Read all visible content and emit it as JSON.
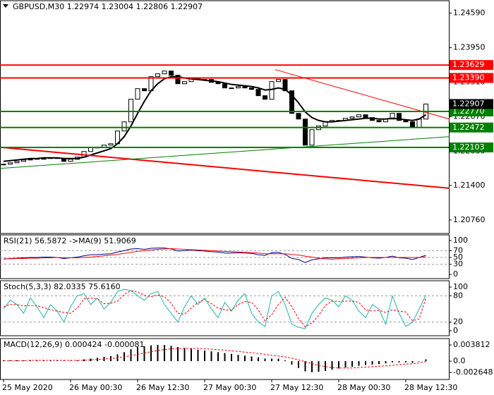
{
  "chart_data": [
    {
      "type": "candlestick",
      "title": "GBPUSD,M30  1.22974 1.23004 1.22806 1.22907",
      "categories": [
        "25 May 2020",
        null,
        null,
        null,
        null,
        null,
        null,
        null,
        null,
        null,
        "26 May 00:30",
        null,
        null,
        null,
        null,
        null,
        null,
        null,
        null,
        null,
        "26 May 12:30",
        null,
        null,
        null,
        null,
        null,
        null,
        null,
        null,
        null,
        "27 May 00:30",
        null,
        null,
        null,
        null,
        null,
        null,
        null,
        null,
        null,
        "27 May 12:30",
        null,
        null,
        null,
        null,
        null,
        null,
        null,
        null,
        null,
        "28 May 00:30",
        null,
        null,
        null,
        null,
        null,
        null,
        null,
        null,
        null,
        "28 May 12:30",
        null,
        null,
        null
      ],
      "closes": [
        1.21793,
        1.21819,
        1.21845,
        1.21871,
        1.21884,
        1.21898,
        1.21898,
        1.21911,
        1.21898,
        1.21845,
        1.21884,
        1.21924,
        1.22028,
        1.22107,
        1.22107,
        1.22146,
        1.22172,
        1.22407,
        1.22577,
        1.22995,
        1.23192,
        1.23152,
        1.23414,
        1.23466,
        1.23518,
        1.2344,
        1.23283,
        1.23322,
        1.23388,
        1.23361,
        1.23361,
        1.23309,
        1.23283,
        1.23205,
        1.23205,
        1.23231,
        1.23205,
        1.23178,
        1.23061,
        1.22995,
        1.23322,
        1.23361,
        1.23152,
        1.22734,
        1.22629,
        1.22146,
        1.22433,
        1.22499,
        1.22577,
        1.22603,
        1.22603,
        1.22643,
        1.22669,
        1.22708,
        1.22656,
        1.22603,
        1.22577,
        1.22629,
        1.22734,
        1.22603,
        1.22577,
        1.22473,
        1.22629,
        1.22907
      ],
      "ma_values": [
        1.21845,
        1.21858,
        1.21871,
        1.21884,
        1.21898,
        1.21898,
        1.21911,
        1.21911,
        1.21911,
        1.21898,
        1.21898,
        1.21898,
        1.21924,
        1.21963,
        1.22002,
        1.22041,
        1.22081,
        1.22172,
        1.22303,
        1.22499,
        1.22734,
        1.22956,
        1.23152,
        1.23283,
        1.23374,
        1.23414,
        1.23414,
        1.23388,
        1.23374,
        1.23361,
        1.23348,
        1.23335,
        1.23322,
        1.23296,
        1.2327,
        1.23257,
        1.23244,
        1.23231,
        1.23205,
        1.23166,
        1.23178,
        1.23205,
        1.23178,
        1.23074,
        1.2293,
        1.2276,
        1.22656,
        1.22603,
        1.22577,
        1.22577,
        1.2259,
        1.22603,
        1.22616,
        1.22629,
        1.22643,
        1.22643,
        1.22629,
        1.22629,
        1.22643,
        1.22629,
        1.22616,
        1.22603,
        1.22629,
        1.22708
      ],
      "ma_color": "#000000",
      "ylim": [
        1.2051,
        1.2482
      ],
      "yticks": [
        {
          "value": 1.2459,
          "label": "1.24590"
        },
        {
          "value": 1.2395,
          "label": "1.23950"
        },
        {
          "value": 1.2331,
          "label": "1.23310"
        },
        {
          "value": 1.2267,
          "label": "1.22670"
        },
        {
          "value": 1.2203,
          "label": "1.22030"
        },
        {
          "value": 1.214,
          "label": "1.21400"
        },
        {
          "value": 1.2076,
          "label": "1.20760"
        }
      ],
      "levels": [
        {
          "value": 1.23629,
          "label": "1.23629",
          "color": "#ff0000"
        },
        {
          "value": 1.2339,
          "label": "1.23390",
          "color": "#ff0000"
        },
        {
          "value": 1.2277,
          "label": "1.22770",
          "color": "#008000"
        },
        {
          "value": 1.22472,
          "label": "1.22472",
          "color": "#008000"
        },
        {
          "value": 1.22103,
          "label": "1.22103",
          "color": "#008000"
        }
      ],
      "trendlines": [
        {
          "color": "#ff0000",
          "width": 2,
          "x": [
            -0.5,
            66.5
          ],
          "y": [
            1.22107,
            1.21348
          ]
        },
        {
          "color": "#ff0000",
          "width": 1,
          "x": [
            40.5,
            66.5
          ],
          "y": [
            1.23544,
            1.22629
          ]
        },
        {
          "color": "#008000",
          "width": 1,
          "x": [
            -0.5,
            66.5
          ],
          "y": [
            1.21715,
            1.22303
          ]
        }
      ]
    },
    {
      "type": "line",
      "title": "RSI(21) 56.5872 ->MA(9) 51.9069",
      "ylim": [
        -12.5,
        116.7
      ],
      "yticks": [
        100,
        70,
        50,
        30,
        0
      ],
      "levels": [
        70,
        50,
        30
      ],
      "series": [
        {
          "color": "#000080",
          "dash": false,
          "values": [
            45,
            47,
            48,
            49,
            50,
            50,
            51,
            51,
            50,
            47,
            49,
            51,
            55,
            58,
            58,
            60,
            61,
            66,
            70,
            75,
            76,
            74,
            77,
            78,
            78,
            75,
            69,
            70,
            72,
            70,
            69,
            67,
            66,
            63,
            63,
            64,
            63,
            62,
            58,
            56,
            64,
            65,
            59,
            47,
            44,
            35,
            43,
            46,
            49,
            49,
            49,
            51,
            52,
            53,
            51,
            49,
            48,
            50,
            54,
            49,
            48,
            44,
            50,
            56.5872
          ]
        },
        {
          "color": "#ff0000",
          "dash": false,
          "values": [
            46,
            46,
            47,
            47,
            48,
            48,
            49,
            49,
            50,
            49,
            49,
            49,
            50,
            51,
            53,
            55,
            57,
            59,
            62,
            65,
            68,
            70,
            72,
            74,
            75,
            76,
            75,
            74,
            73,
            72,
            71,
            70,
            69,
            68,
            67,
            66,
            65,
            64,
            63,
            61,
            61,
            61,
            61,
            59,
            57,
            54,
            51,
            48,
            46,
            45,
            46,
            47,
            48,
            49,
            50,
            50,
            50,
            50,
            50,
            50,
            50,
            50,
            50,
            51.9069
          ]
        }
      ]
    },
    {
      "type": "line",
      "title": "Stoch(5,3,3) 82.0335 75.6160",
      "ylim": [
        -11.3,
        114.5
      ],
      "yticks": [
        100,
        80,
        20,
        0
      ],
      "levels": [
        80,
        20
      ],
      "series": [
        {
          "color": "#20b2aa",
          "dash": false,
          "values": [
            50,
            70,
            60,
            40,
            75,
            55,
            30,
            60,
            45,
            20,
            55,
            80,
            85,
            60,
            75,
            50,
            65,
            90,
            95,
            92,
            80,
            70,
            85,
            90,
            60,
            40,
            20,
            55,
            80,
            60,
            75,
            50,
            30,
            65,
            45,
            70,
            85,
            40,
            20,
            10,
            80,
            90,
            60,
            15,
            8,
            5,
            40,
            60,
            75,
            70,
            55,
            80,
            70,
            45,
            30,
            60,
            50,
            15,
            80,
            40,
            10,
            20,
            50,
            82.0335
          ]
        },
        {
          "color": "#ff0000",
          "dash": true,
          "values": [
            55,
            60,
            60,
            57,
            58,
            57,
            53,
            48,
            45,
            42,
            40,
            52,
            73,
            75,
            73,
            62,
            63,
            68,
            83,
            92,
            89,
            81,
            78,
            82,
            78,
            63,
            40,
            38,
            52,
            65,
            72,
            62,
            52,
            48,
            47,
            60,
            67,
            65,
            48,
            23,
            37,
            60,
            77,
            55,
            28,
            9,
            18,
            35,
            58,
            68,
            67,
            68,
            68,
            65,
            48,
            45,
            47,
            42,
            48,
            45,
            43,
            23,
            27,
            75.616
          ]
        }
      ]
    },
    {
      "type": "macd",
      "title": "MACD(12,26,9) 0.000424 -0.000081",
      "ylim": [
        -0.0043,
        0.0053
      ],
      "yticks": [
        0.003812,
        {
          "value": 0,
          "label": "0.0"
        },
        -0.002648
      ],
      "bar_color": "#000000",
      "values": [
        0.0002,
        0.0002,
        0.0002,
        0.0002,
        0.0002,
        0.0002,
        0.0002,
        0.0002,
        0.0001,
        0.0001,
        0.0001,
        0.0002,
        0.0004,
        0.0006,
        0.0008,
        0.001,
        0.0012,
        0.0016,
        0.0021,
        0.0028,
        0.0033,
        0.0035,
        0.0037,
        0.0038,
        0.0038,
        0.0036,
        0.0033,
        0.0031,
        0.0029,
        0.0027,
        0.0025,
        0.0023,
        0.0021,
        0.0019,
        0.0017,
        0.0015,
        0.0013,
        0.0011,
        0.0009,
        0.0006,
        0.0006,
        0.0006,
        0.0002,
        -0.0008,
        -0.0016,
        -0.0024,
        -0.0026,
        -0.0025,
        -0.0023,
        -0.002,
        -0.0017,
        -0.0015,
        -0.0013,
        -0.0011,
        -0.0009,
        -0.0008,
        -0.0007,
        -0.0005,
        -0.0003,
        -0.0003,
        -0.0003,
        -0.0004,
        -0.0001,
        0.000424
      ],
      "signal": {
        "color": "#ff0000",
        "values": [
          0.0001,
          0.0001,
          0.0001,
          0.0001,
          0.0002,
          0.0002,
          0.0002,
          0.0002,
          0.0002,
          0.0002,
          0.0002,
          0.0002,
          0.0002,
          0.0003,
          0.0004,
          0.0005,
          0.0006,
          0.0008,
          0.001,
          0.0013,
          0.0016,
          0.0019,
          0.0022,
          0.0025,
          0.0027,
          0.0029,
          0.003,
          0.003,
          0.003,
          0.003,
          0.0029,
          0.0028,
          0.0027,
          0.0026,
          0.0024,
          0.0023,
          0.0021,
          0.002,
          0.0018,
          0.0016,
          0.0014,
          0.0012,
          0.001,
          0.0007,
          0.0003,
          -0.0001,
          -0.0006,
          -0.001,
          -0.0013,
          -0.0015,
          -0.0016,
          -0.0016,
          -0.0016,
          -0.0015,
          -0.0014,
          -0.0013,
          -0.0012,
          -0.0011,
          -0.001,
          -0.0008,
          -0.0007,
          -0.0006,
          -0.0004,
          -8.1e-05
        ]
      }
    }
  ]
}
